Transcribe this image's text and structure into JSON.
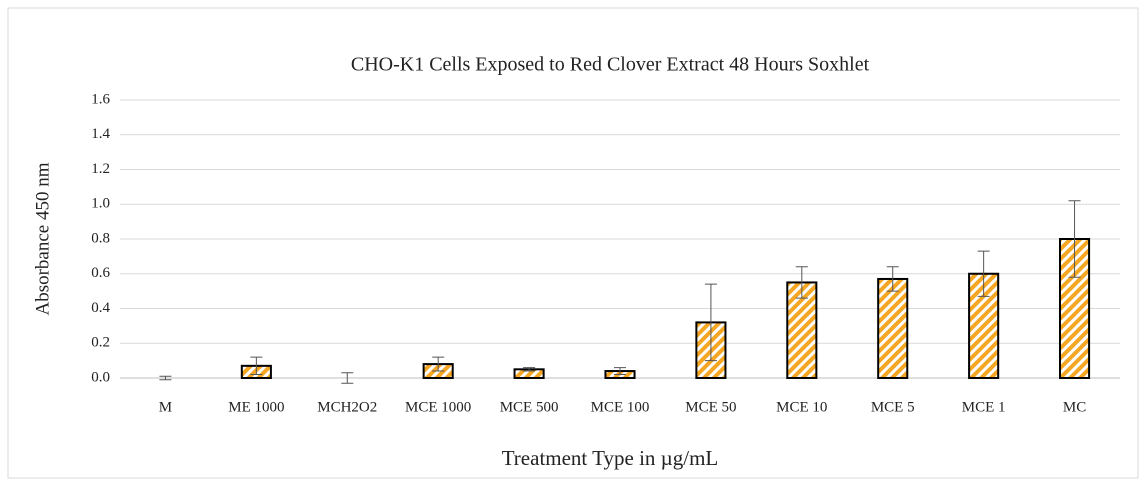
{
  "chart_data": {
    "type": "bar",
    "title": "CHO-K1 Cells Exposed to Red Clover Extract 48 Hours Soxhlet",
    "x_label": "Treatment Type in µg/mL",
    "y_label": "Absorbance 450 nm",
    "categories": [
      "M",
      "ME 1000",
      "MCH2O2",
      "MCE 1000",
      "MCE 500",
      "MCE 100",
      "MCE 50",
      "MCE 10",
      "MCE 5",
      "MCE 1",
      "MC"
    ],
    "values": [
      0.0,
      0.07,
      0.0,
      0.08,
      0.05,
      0.04,
      0.32,
      0.55,
      0.57,
      0.6,
      0.8
    ],
    "errors": [
      0.01,
      0.05,
      0.03,
      0.04,
      0.01,
      0.02,
      0.22,
      0.09,
      0.07,
      0.13,
      0.22
    ],
    "color": "#f5a623",
    "ylim": [
      0,
      1.6
    ],
    "yticks": [
      {
        "value": 0,
        "label": "0.0"
      },
      0.2,
      0.4,
      0.6,
      0.8,
      {
        "value": 1,
        "label": "1.0"
      },
      1.2,
      1.4,
      1.6
    ],
    "grid": true
  }
}
